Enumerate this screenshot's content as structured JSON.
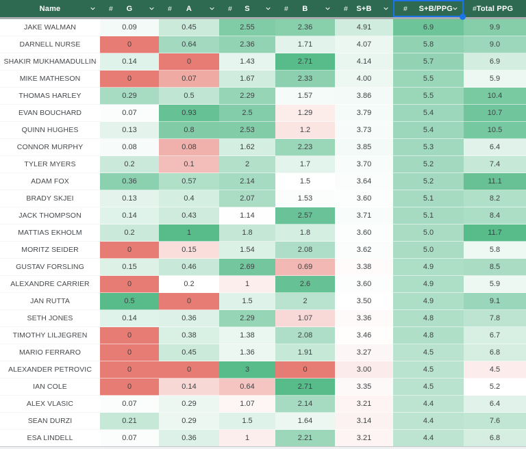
{
  "table": {
    "header_bg": "#2d6a51",
    "header_text_color": "#ffffff",
    "selection_color": "#1a73e8",
    "columns": [
      {
        "key": "name",
        "label": "Name",
        "type_icon": "",
        "width": 146,
        "filter": true,
        "selected": false
      },
      {
        "key": "g",
        "label": "G",
        "type_icon": "#",
        "width": 86,
        "filter": true,
        "selected": false
      },
      {
        "key": "a",
        "label": "A",
        "type_icon": "#",
        "width": 88,
        "filter": true,
        "selected": false
      },
      {
        "key": "s",
        "label": "S",
        "type_icon": "#",
        "width": 82,
        "filter": true,
        "selected": false
      },
      {
        "key": "b",
        "label": "B",
        "type_icon": "#",
        "width": 87,
        "filter": true,
        "selected": false
      },
      {
        "key": "sb",
        "label": "S+B",
        "type_icon": "#",
        "width": 85,
        "filter": true,
        "selected": false
      },
      {
        "key": "sbppg",
        "label": "S+B/PPG",
        "type_icon": "#",
        "width": 103,
        "filter": true,
        "selected": true
      },
      {
        "key": "total",
        "label": "Total PPG",
        "type_icon": "#",
        "width": 91,
        "filter": false,
        "selected": false
      }
    ],
    "rows": [
      {
        "name": "JAKE WALMAN",
        "g": "0.09",
        "a": "0.45",
        "s": "2.55",
        "b": "2.36",
        "sb": "4.91",
        "sbppg": "6.9",
        "total": "9.9"
      },
      {
        "name": "DARNELL NURSE",
        "g": "0",
        "a": "0.64",
        "s": "2.36",
        "b": "1.71",
        "sb": "4.07",
        "sbppg": "5.8",
        "total": "9.0"
      },
      {
        "name": "SHAKIR MUKHAMADULLIN",
        "g": "0.14",
        "a": "0",
        "s": "1.43",
        "b": "2.71",
        "sb": "4.14",
        "sbppg": "5.7",
        "total": "6.9"
      },
      {
        "name": "MIKE MATHESON",
        "g": "0",
        "a": "0.07",
        "s": "1.67",
        "b": "2.33",
        "sb": "4.00",
        "sbppg": "5.5",
        "total": "5.9"
      },
      {
        "name": "THOMAS HARLEY",
        "g": "0.29",
        "a": "0.5",
        "s": "2.29",
        "b": "1.57",
        "sb": "3.86",
        "sbppg": "5.5",
        "total": "10.4"
      },
      {
        "name": "EVAN BOUCHARD",
        "g": "0.07",
        "a": "0.93",
        "s": "2.5",
        "b": "1.29",
        "sb": "3.79",
        "sbppg": "5.4",
        "total": "10.7"
      },
      {
        "name": "QUINN HUGHES",
        "g": "0.13",
        "a": "0.8",
        "s": "2.53",
        "b": "1.2",
        "sb": "3.73",
        "sbppg": "5.4",
        "total": "10.5"
      },
      {
        "name": "CONNOR MURPHY",
        "g": "0.08",
        "a": "0.08",
        "s": "1.62",
        "b": "2.23",
        "sb": "3.85",
        "sbppg": "5.3",
        "total": "6.4"
      },
      {
        "name": "TYLER MYERS",
        "g": "0.2",
        "a": "0.1",
        "s": "2",
        "b": "1.7",
        "sb": "3.70",
        "sbppg": "5.2",
        "total": "7.4"
      },
      {
        "name": "ADAM FOX",
        "g": "0.36",
        "a": "0.57",
        "s": "2.14",
        "b": "1.5",
        "sb": "3.64",
        "sbppg": "5.2",
        "total": "11.1"
      },
      {
        "name": "BRADY SKJEI",
        "g": "0.13",
        "a": "0.4",
        "s": "2.07",
        "b": "1.53",
        "sb": "3.60",
        "sbppg": "5.1",
        "total": "8.2"
      },
      {
        "name": "JACK THOMPSON",
        "g": "0.14",
        "a": "0.43",
        "s": "1.14",
        "b": "2.57",
        "sb": "3.71",
        "sbppg": "5.1",
        "total": "8.4"
      },
      {
        "name": "MATTIAS EKHOLM",
        "g": "0.2",
        "a": "1",
        "s": "1.8",
        "b": "1.8",
        "sb": "3.60",
        "sbppg": "5.0",
        "total": "11.7"
      },
      {
        "name": "MORITZ SEIDER",
        "g": "0",
        "a": "0.15",
        "s": "1.54",
        "b": "2.08",
        "sb": "3.62",
        "sbppg": "5.0",
        "total": "5.8"
      },
      {
        "name": "GUSTAV FORSLING",
        "g": "0.15",
        "a": "0.46",
        "s": "2.69",
        "b": "0.69",
        "sb": "3.38",
        "sbppg": "4.9",
        "total": "8.5"
      },
      {
        "name": "ALEXANDRE CARRIER",
        "g": "0",
        "a": "0.2",
        "s": "1",
        "b": "2.6",
        "sb": "3.60",
        "sbppg": "4.9",
        "total": "5.9"
      },
      {
        "name": "JAN RUTTA",
        "g": "0.5",
        "a": "0",
        "s": "1.5",
        "b": "2",
        "sb": "3.50",
        "sbppg": "4.9",
        "total": "9.1"
      },
      {
        "name": "SETH JONES",
        "g": "0.14",
        "a": "0.36",
        "s": "2.29",
        "b": "1.07",
        "sb": "3.36",
        "sbppg": "4.8",
        "total": "7.8"
      },
      {
        "name": "TIMOTHY LILJEGREN",
        "g": "0",
        "a": "0.38",
        "s": "1.38",
        "b": "2.08",
        "sb": "3.46",
        "sbppg": "4.8",
        "total": "6.7"
      },
      {
        "name": "MARIO FERRARO",
        "g": "0",
        "a": "0.45",
        "s": "1.36",
        "b": "1.91",
        "sb": "3.27",
        "sbppg": "4.5",
        "total": "6.8"
      },
      {
        "name": "ALEXANDER PETROVIC",
        "g": "0",
        "a": "0",
        "s": "3",
        "b": "0",
        "sb": "3.00",
        "sbppg": "4.5",
        "total": "4.5"
      },
      {
        "name": "IAN COLE",
        "g": "0",
        "a": "0.14",
        "s": "0.64",
        "b": "2.71",
        "sb": "3.35",
        "sbppg": "4.5",
        "total": "5.2"
      },
      {
        "name": "ALEX VLASIC",
        "g": "0.07",
        "a": "0.29",
        "s": "1.07",
        "b": "2.14",
        "sb": "3.21",
        "sbppg": "4.4",
        "total": "6.4"
      },
      {
        "name": "SEAN DURZI",
        "g": "0.21",
        "a": "0.29",
        "s": "1.5",
        "b": "1.64",
        "sb": "3.14",
        "sbppg": "4.4",
        "total": "7.6"
      },
      {
        "name": "ESA LINDELL",
        "g": "0.07",
        "a": "0.36",
        "s": "1",
        "b": "2.21",
        "sb": "3.21",
        "sbppg": "4.4",
        "total": "6.8"
      }
    ]
  },
  "heatmap": {
    "red": "#e67c73",
    "white": "#ffffff",
    "green": "#57bb8a",
    "scales": {
      "g": {
        "min": 0,
        "mid": 0.06,
        "max": 0.5
      },
      "a": {
        "min": 0,
        "mid": 0.2,
        "max": 1.0
      },
      "s": {
        "min": 0,
        "mid": 1.15,
        "max": 3.0
      },
      "b": {
        "min": 0,
        "mid": 1.5,
        "max": 2.71
      },
      "sb": {
        "min": 0,
        "mid": 3.5,
        "max": 8.5
      },
      "sbppg": {
        "min": 0,
        "mid": 2.3,
        "max": 7.6
      },
      "total": {
        "min": 0,
        "mid": 5.2,
        "max": 11.7
      }
    }
  }
}
